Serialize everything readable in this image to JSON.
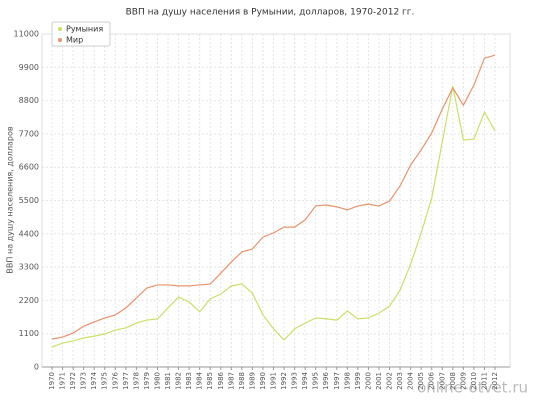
{
  "chart_data": {
    "type": "line",
    "title": "ВВП на душу населения в Румынии, долларов, 1970-2012 гг.",
    "y_label": "ВВП на душу населения, долларов",
    "categories": [
      "1970",
      "1971",
      "1972",
      "1973",
      "1974",
      "1975",
      "1976",
      "1977",
      "1978",
      "1979",
      "1980",
      "1981",
      "1982",
      "1983",
      "1984",
      "1985",
      "1986",
      "1987",
      "1988",
      "1989",
      "1990",
      "1991",
      "1992",
      "1993",
      "1994",
      "1995",
      "1996",
      "1997",
      "1998",
      "1999",
      "2000",
      "2001",
      "2002",
      "2003",
      "2004",
      "2005",
      "2006",
      "2007",
      "2008",
      "2009",
      "2010",
      "2011",
      "2012"
    ],
    "series": [
      {
        "name": "Румыния",
        "color": "#c8e06a",
        "values": [
          660,
          790,
          860,
          960,
          1020,
          1090,
          1220,
          1290,
          1450,
          1550,
          1590,
          1950,
          2310,
          2150,
          1820,
          2250,
          2410,
          2680,
          2740,
          2440,
          1720,
          1260,
          890,
          1260,
          1450,
          1620,
          1590,
          1550,
          1850,
          1590,
          1620,
          1780,
          2010,
          2540,
          3400,
          4430,
          5580,
          7430,
          9280,
          7500,
          7530,
          8420,
          7800
        ]
      },
      {
        "name": "Мир",
        "color": "#e8936a",
        "values": [
          920,
          990,
          1120,
          1350,
          1490,
          1620,
          1720,
          1950,
          2280,
          2610,
          2710,
          2710,
          2680,
          2680,
          2710,
          2740,
          3100,
          3470,
          3800,
          3900,
          4290,
          4430,
          4620,
          4620,
          4860,
          5320,
          5350,
          5290,
          5190,
          5320,
          5380,
          5320,
          5480,
          5980,
          6670,
          7170,
          7730,
          8520,
          9220,
          8650,
          9310,
          10200,
          10300
        ]
      }
    ],
    "ylim": [
      0,
      11000
    ],
    "yticks": [
      0,
      1100,
      2200,
      3300,
      4400,
      5500,
      6600,
      7700,
      8800,
      9900,
      11000
    ],
    "grid": true,
    "legend": "upper left"
  },
  "watermark": "online-otvet.ru"
}
